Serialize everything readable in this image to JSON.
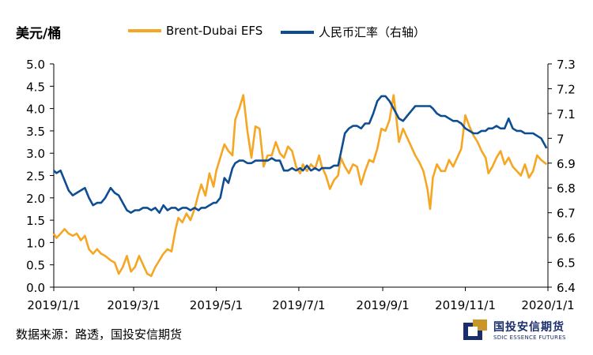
{
  "chart_data": {
    "type": "line",
    "title": "",
    "left_axis_unit": "美元/桶",
    "legend_position": "top",
    "x_ticks": [
      "2019/1/1",
      "2019/3/1",
      "2019/5/1",
      "2019/7/1",
      "2019/9/1",
      "2019/11/1",
      "2020/1/1"
    ],
    "y_left": {
      "min": 0.0,
      "max": 5.0,
      "step": 0.5,
      "ticks": [
        "0.0",
        "0.5",
        "1.0",
        "1.5",
        "2.0",
        "2.5",
        "3.0",
        "3.5",
        "4.0",
        "4.5",
        "5.0"
      ]
    },
    "y_right": {
      "min": 6.4,
      "max": 7.3,
      "step": 0.1,
      "ticks": [
        "6.4",
        "6.5",
        "6.6",
        "6.7",
        "6.8",
        "6.9",
        "7",
        "7.1",
        "7.2",
        "7.3"
      ]
    },
    "grid": false,
    "series": [
      {
        "name": "Brent-Dubai EFS",
        "axis": "left",
        "color": "#F5A623",
        "points": [
          [
            "2019-01-01",
            1.2
          ],
          [
            "2019-01-03",
            1.1
          ],
          [
            "2019-01-06",
            1.2
          ],
          [
            "2019-01-09",
            1.3
          ],
          [
            "2019-01-12",
            1.2
          ],
          [
            "2019-01-15",
            1.15
          ],
          [
            "2019-01-18",
            1.2
          ],
          [
            "2019-01-21",
            1.05
          ],
          [
            "2019-01-24",
            1.15
          ],
          [
            "2019-01-27",
            0.85
          ],
          [
            "2019-01-30",
            0.75
          ],
          [
            "2019-02-02",
            0.85
          ],
          [
            "2019-02-05",
            0.75
          ],
          [
            "2019-02-08",
            0.7
          ],
          [
            "2019-02-12",
            0.6
          ],
          [
            "2019-02-15",
            0.55
          ],
          [
            "2019-02-18",
            0.3
          ],
          [
            "2019-02-21",
            0.45
          ],
          [
            "2019-02-24",
            0.7
          ],
          [
            "2019-02-27",
            0.35
          ],
          [
            "2019-03-02",
            0.45
          ],
          [
            "2019-03-05",
            0.7
          ],
          [
            "2019-03-08",
            0.5
          ],
          [
            "2019-03-11",
            0.3
          ],
          [
            "2019-03-14",
            0.25
          ],
          [
            "2019-03-17",
            0.45
          ],
          [
            "2019-03-20",
            0.6
          ],
          [
            "2019-03-23",
            0.75
          ],
          [
            "2019-03-26",
            0.85
          ],
          [
            "2019-03-29",
            0.8
          ],
          [
            "2019-04-01",
            1.3
          ],
          [
            "2019-04-03",
            1.55
          ],
          [
            "2019-04-06",
            1.45
          ],
          [
            "2019-04-09",
            1.65
          ],
          [
            "2019-04-12",
            1.5
          ],
          [
            "2019-04-15",
            1.75
          ],
          [
            "2019-04-18",
            2.1
          ],
          [
            "2019-04-20",
            2.3
          ],
          [
            "2019-04-23",
            2.05
          ],
          [
            "2019-04-26",
            2.55
          ],
          [
            "2019-04-29",
            2.25
          ],
          [
            "2019-05-01",
            2.6
          ],
          [
            "2019-05-04",
            2.9
          ],
          [
            "2019-05-07",
            3.2
          ],
          [
            "2019-05-10",
            3.05
          ],
          [
            "2019-05-13",
            2.95
          ],
          [
            "2019-05-15",
            3.75
          ],
          [
            "2019-05-18",
            4.0
          ],
          [
            "2019-05-21",
            4.3
          ],
          [
            "2019-05-24",
            3.5
          ],
          [
            "2019-05-27",
            2.9
          ],
          [
            "2019-05-30",
            3.6
          ],
          [
            "2019-06-02",
            3.55
          ],
          [
            "2019-06-05",
            2.7
          ],
          [
            "2019-06-08",
            2.95
          ],
          [
            "2019-06-11",
            2.95
          ],
          [
            "2019-06-14",
            3.25
          ],
          [
            "2019-06-17",
            3.0
          ],
          [
            "2019-06-20",
            2.9
          ],
          [
            "2019-06-23",
            3.15
          ],
          [
            "2019-06-26",
            3.05
          ],
          [
            "2019-06-29",
            2.7
          ],
          [
            "2019-07-02",
            2.55
          ],
          [
            "2019-07-04",
            2.75
          ],
          [
            "2019-07-07",
            2.6
          ],
          [
            "2019-07-10",
            2.75
          ],
          [
            "2019-07-13",
            2.65
          ],
          [
            "2019-07-16",
            2.95
          ],
          [
            "2019-07-18",
            2.7
          ],
          [
            "2019-07-21",
            2.5
          ],
          [
            "2019-07-24",
            2.2
          ],
          [
            "2019-07-27",
            2.4
          ],
          [
            "2019-07-30",
            2.5
          ],
          [
            "2019-08-01",
            2.9
          ],
          [
            "2019-08-04",
            2.7
          ],
          [
            "2019-08-07",
            2.55
          ],
          [
            "2019-08-10",
            2.75
          ],
          [
            "2019-08-13",
            2.7
          ],
          [
            "2019-08-16",
            2.3
          ],
          [
            "2019-08-19",
            2.6
          ],
          [
            "2019-08-22",
            2.85
          ],
          [
            "2019-08-25",
            2.8
          ],
          [
            "2019-08-28",
            3.1
          ],
          [
            "2019-08-31",
            3.55
          ],
          [
            "2019-09-03",
            3.5
          ],
          [
            "2019-09-06",
            3.75
          ],
          [
            "2019-09-09",
            4.3
          ],
          [
            "2019-09-11",
            3.8
          ],
          [
            "2019-09-13",
            3.25
          ],
          [
            "2019-09-16",
            3.55
          ],
          [
            "2019-09-19",
            3.35
          ],
          [
            "2019-09-22",
            3.15
          ],
          [
            "2019-09-25",
            2.95
          ],
          [
            "2019-09-28",
            2.8
          ],
          [
            "2019-10-01",
            2.6
          ],
          [
            "2019-10-04",
            2.2
          ],
          [
            "2019-10-06",
            1.75
          ],
          [
            "2019-10-08",
            2.45
          ],
          [
            "2019-10-11",
            2.75
          ],
          [
            "2019-10-14",
            2.6
          ],
          [
            "2019-10-17",
            2.6
          ],
          [
            "2019-10-20",
            2.85
          ],
          [
            "2019-10-23",
            2.7
          ],
          [
            "2019-10-26",
            2.9
          ],
          [
            "2019-10-29",
            3.1
          ],
          [
            "2019-11-01",
            3.85
          ],
          [
            "2019-11-04",
            3.6
          ],
          [
            "2019-11-07",
            3.4
          ],
          [
            "2019-11-10",
            3.25
          ],
          [
            "2019-11-13",
            3.05
          ],
          [
            "2019-11-16",
            2.9
          ],
          [
            "2019-11-18",
            2.55
          ],
          [
            "2019-11-21",
            2.7
          ],
          [
            "2019-11-24",
            2.9
          ],
          [
            "2019-11-27",
            3.05
          ],
          [
            "2019-11-30",
            2.75
          ],
          [
            "2019-12-03",
            2.9
          ],
          [
            "2019-12-06",
            2.7
          ],
          [
            "2019-12-09",
            2.6
          ],
          [
            "2019-12-12",
            2.5
          ],
          [
            "2019-12-15",
            2.75
          ],
          [
            "2019-12-18",
            2.45
          ],
          [
            "2019-12-21",
            2.6
          ],
          [
            "2019-12-24",
            2.95
          ],
          [
            "2019-12-27",
            2.85
          ],
          [
            "2019-12-31",
            2.75
          ]
        ]
      },
      {
        "name": "人民币汇率（右轴）",
        "axis": "right",
        "color": "#0E4D92",
        "points": [
          [
            "2019-01-01",
            6.87
          ],
          [
            "2019-01-03",
            6.86
          ],
          [
            "2019-01-06",
            6.87
          ],
          [
            "2019-01-09",
            6.83
          ],
          [
            "2019-01-12",
            6.79
          ],
          [
            "2019-01-15",
            6.77
          ],
          [
            "2019-01-18",
            6.78
          ],
          [
            "2019-01-21",
            6.79
          ],
          [
            "2019-01-24",
            6.8
          ],
          [
            "2019-01-27",
            6.76
          ],
          [
            "2019-01-30",
            6.73
          ],
          [
            "2019-02-02",
            6.74
          ],
          [
            "2019-02-05",
            6.74
          ],
          [
            "2019-02-08",
            6.76
          ],
          [
            "2019-02-12",
            6.8
          ],
          [
            "2019-02-15",
            6.78
          ],
          [
            "2019-02-18",
            6.77
          ],
          [
            "2019-02-21",
            6.74
          ],
          [
            "2019-02-24",
            6.71
          ],
          [
            "2019-02-27",
            6.7
          ],
          [
            "2019-03-02",
            6.71
          ],
          [
            "2019-03-05",
            6.71
          ],
          [
            "2019-03-08",
            6.72
          ],
          [
            "2019-03-11",
            6.72
          ],
          [
            "2019-03-14",
            6.71
          ],
          [
            "2019-03-17",
            6.72
          ],
          [
            "2019-03-20",
            6.7
          ],
          [
            "2019-03-23",
            6.73
          ],
          [
            "2019-03-26",
            6.71
          ],
          [
            "2019-03-29",
            6.72
          ],
          [
            "2019-04-01",
            6.72
          ],
          [
            "2019-04-03",
            6.71
          ],
          [
            "2019-04-06",
            6.72
          ],
          [
            "2019-04-09",
            6.72
          ],
          [
            "2019-04-12",
            6.71
          ],
          [
            "2019-04-15",
            6.72
          ],
          [
            "2019-04-18",
            6.71
          ],
          [
            "2019-04-20",
            6.72
          ],
          [
            "2019-04-23",
            6.72
          ],
          [
            "2019-04-26",
            6.73
          ],
          [
            "2019-04-29",
            6.74
          ],
          [
            "2019-05-01",
            6.74
          ],
          [
            "2019-05-04",
            6.76
          ],
          [
            "2019-05-07",
            6.84
          ],
          [
            "2019-05-10",
            6.82
          ],
          [
            "2019-05-13",
            6.88
          ],
          [
            "2019-05-15",
            6.9
          ],
          [
            "2019-05-18",
            6.91
          ],
          [
            "2019-05-21",
            6.91
          ],
          [
            "2019-05-24",
            6.9
          ],
          [
            "2019-05-27",
            6.9
          ],
          [
            "2019-05-30",
            6.91
          ],
          [
            "2019-06-02",
            6.91
          ],
          [
            "2019-06-05",
            6.91
          ],
          [
            "2019-06-08",
            6.91
          ],
          [
            "2019-06-11",
            6.92
          ],
          [
            "2019-06-14",
            6.91
          ],
          [
            "2019-06-17",
            6.91
          ],
          [
            "2019-06-20",
            6.87
          ],
          [
            "2019-06-23",
            6.87
          ],
          [
            "2019-06-26",
            6.88
          ],
          [
            "2019-06-29",
            6.87
          ],
          [
            "2019-07-02",
            6.88
          ],
          [
            "2019-07-04",
            6.87
          ],
          [
            "2019-07-07",
            6.89
          ],
          [
            "2019-07-10",
            6.87
          ],
          [
            "2019-07-13",
            6.88
          ],
          [
            "2019-07-16",
            6.87
          ],
          [
            "2019-07-18",
            6.88
          ],
          [
            "2019-07-21",
            6.88
          ],
          [
            "2019-07-24",
            6.88
          ],
          [
            "2019-07-27",
            6.89
          ],
          [
            "2019-07-30",
            6.89
          ],
          [
            "2019-08-01",
            6.94
          ],
          [
            "2019-08-04",
            7.02
          ],
          [
            "2019-08-07",
            7.04
          ],
          [
            "2019-08-10",
            7.05
          ],
          [
            "2019-08-13",
            7.05
          ],
          [
            "2019-08-16",
            7.04
          ],
          [
            "2019-08-19",
            7.06
          ],
          [
            "2019-08-22",
            7.06
          ],
          [
            "2019-08-25",
            7.1
          ],
          [
            "2019-08-28",
            7.15
          ],
          [
            "2019-08-31",
            7.17
          ],
          [
            "2019-09-03",
            7.17
          ],
          [
            "2019-09-06",
            7.15
          ],
          [
            "2019-09-09",
            7.12
          ],
          [
            "2019-09-11",
            7.1
          ],
          [
            "2019-09-13",
            7.08
          ],
          [
            "2019-09-16",
            7.07
          ],
          [
            "2019-09-19",
            7.09
          ],
          [
            "2019-09-22",
            7.11
          ],
          [
            "2019-09-25",
            7.13
          ],
          [
            "2019-09-28",
            7.13
          ],
          [
            "2019-10-01",
            7.13
          ],
          [
            "2019-10-04",
            7.13
          ],
          [
            "2019-10-06",
            7.13
          ],
          [
            "2019-10-08",
            7.12
          ],
          [
            "2019-10-11",
            7.1
          ],
          [
            "2019-10-14",
            7.09
          ],
          [
            "2019-10-17",
            7.09
          ],
          [
            "2019-10-20",
            7.08
          ],
          [
            "2019-10-23",
            7.07
          ],
          [
            "2019-10-26",
            7.07
          ],
          [
            "2019-10-29",
            7.06
          ],
          [
            "2019-11-01",
            7.04
          ],
          [
            "2019-11-04",
            7.03
          ],
          [
            "2019-11-07",
            7.02
          ],
          [
            "2019-11-10",
            7.02
          ],
          [
            "2019-11-13",
            7.03
          ],
          [
            "2019-11-16",
            7.03
          ],
          [
            "2019-11-18",
            7.04
          ],
          [
            "2019-11-21",
            7.04
          ],
          [
            "2019-11-24",
            7.05
          ],
          [
            "2019-11-27",
            7.04
          ],
          [
            "2019-11-30",
            7.04
          ],
          [
            "2019-12-03",
            7.08
          ],
          [
            "2019-12-06",
            7.04
          ],
          [
            "2019-12-09",
            7.03
          ],
          [
            "2019-12-12",
            7.03
          ],
          [
            "2019-12-15",
            7.02
          ],
          [
            "2019-12-18",
            7.02
          ],
          [
            "2019-12-21",
            7.02
          ],
          [
            "2019-12-24",
            7.01
          ],
          [
            "2019-12-27",
            7.0
          ],
          [
            "2019-12-31",
            6.96
          ]
        ]
      }
    ]
  },
  "footer": {
    "source": "数据来源：路透，国投安信期货",
    "logo_cn": "国投安信期货",
    "logo_en": "SDIC ESSENCE FUTURES"
  },
  "colors": {
    "logo_navy": "#1a2e6b",
    "logo_gold": "#C9962A",
    "axis": "#000000"
  }
}
